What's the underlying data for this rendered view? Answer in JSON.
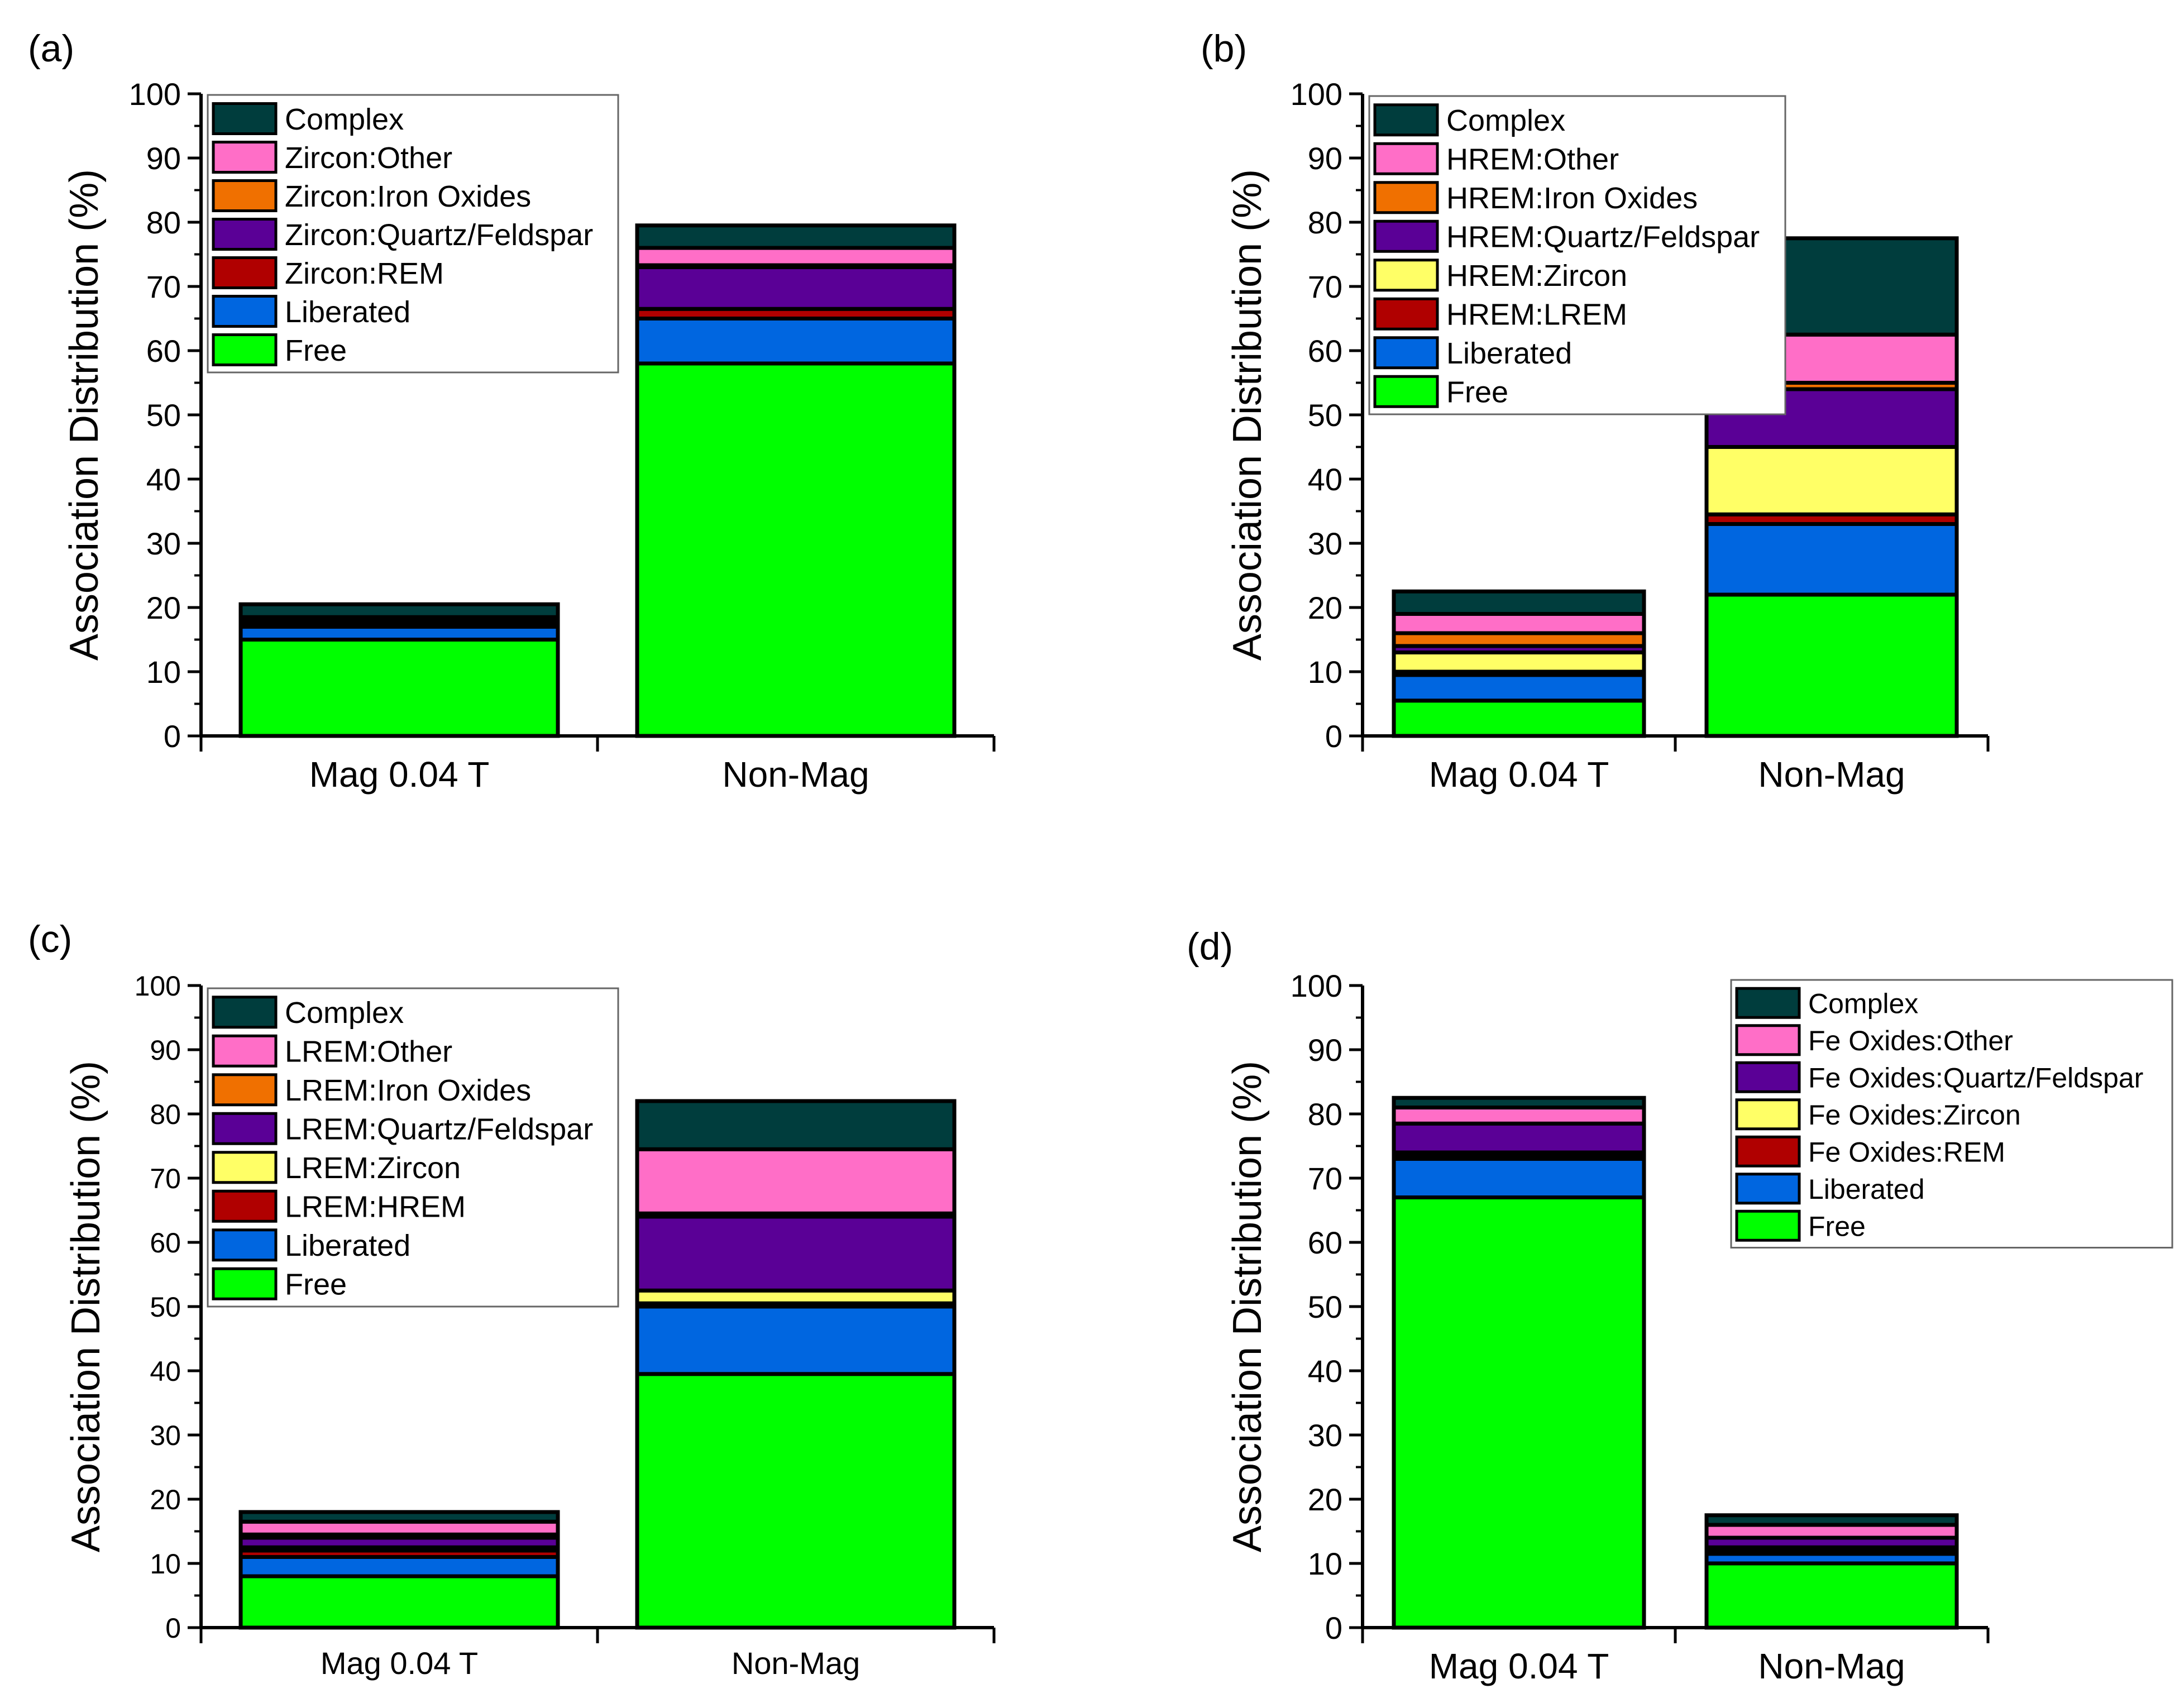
{
  "chart_data": [
    {
      "type": "bar",
      "stacked": true,
      "panel_label": "(a)",
      "ylabel": "Association Distribution (%)",
      "ylim": [
        0,
        100
      ],
      "yticks": [
        0,
        10,
        20,
        30,
        40,
        50,
        60,
        70,
        80,
        90,
        100
      ],
      "categories": [
        "Mag 0.04 T",
        "Non-Mag"
      ],
      "legend_position": "top-left",
      "series": [
        {
          "name": "Free",
          "color": "#00ff00",
          "values": [
            15.0,
            58.0
          ]
        },
        {
          "name": "Liberated",
          "color": "#0066e0",
          "values": [
            2.0,
            7.0
          ]
        },
        {
          "name": "Zircon:REM",
          "color": "#b00000",
          "values": [
            0.5,
            1.5
          ]
        },
        {
          "name": "Zircon:Quartz/Feldspar",
          "color": "#5a0096",
          "values": [
            0.5,
            6.5
          ]
        },
        {
          "name": "Zircon:Iron Oxides",
          "color": "#f07000",
          "values": [
            0.3,
            0.3
          ]
        },
        {
          "name": "Zircon:Other",
          "color": "#ff6ec7",
          "values": [
            0.2,
            2.7
          ]
        },
        {
          "name": "Complex",
          "color": "#003d3d",
          "values": [
            2.0,
            3.5
          ]
        }
      ]
    },
    {
      "type": "bar",
      "stacked": true,
      "panel_label": "(b)",
      "ylabel": "Association Distribution (%)",
      "ylim": [
        0,
        100
      ],
      "yticks": [
        0,
        10,
        20,
        30,
        40,
        50,
        60,
        70,
        80,
        90,
        100
      ],
      "categories": [
        "Mag 0.04 T",
        "Non-Mag"
      ],
      "legend_position": "top-left",
      "series": [
        {
          "name": "Free",
          "color": "#00ff00",
          "values": [
            5.5,
            22.0
          ]
        },
        {
          "name": "Liberated",
          "color": "#0066e0",
          "values": [
            4.0,
            11.0
          ]
        },
        {
          "name": "HREM:LREM",
          "color": "#b00000",
          "values": [
            0.5,
            1.5
          ]
        },
        {
          "name": "HREM:Zircon",
          "color": "#ffff66",
          "values": [
            3.0,
            10.5
          ]
        },
        {
          "name": "HREM:Quartz/Feldspar",
          "color": "#5a0096",
          "values": [
            1.0,
            9.0
          ]
        },
        {
          "name": "HREM:Iron Oxides",
          "color": "#f07000",
          "values": [
            2.0,
            1.0
          ]
        },
        {
          "name": "HREM:Other",
          "color": "#ff6ec7",
          "values": [
            3.0,
            7.5
          ]
        },
        {
          "name": "Complex",
          "color": "#003d3d",
          "values": [
            3.5,
            15.0
          ]
        }
      ]
    },
    {
      "type": "bar",
      "stacked": true,
      "panel_label": "(c)",
      "ylabel": "Association Distribution (%)",
      "ylim": [
        0,
        100
      ],
      "yticks": [
        0,
        10,
        20,
        30,
        40,
        50,
        60,
        70,
        80,
        90,
        100
      ],
      "categories": [
        "Mag 0.04 T",
        "Non-Mag"
      ],
      "legend_position": "top-left",
      "series": [
        {
          "name": "Free",
          "color": "#00ff00",
          "values": [
            8.0,
            39.5
          ]
        },
        {
          "name": "Liberated",
          "color": "#0066e0",
          "values": [
            3.0,
            10.5
          ]
        },
        {
          "name": "LREM:HREM",
          "color": "#b00000",
          "values": [
            1.0,
            0.5
          ]
        },
        {
          "name": "LREM:Zircon",
          "color": "#ffff66",
          "values": [
            0.5,
            2.0
          ]
        },
        {
          "name": "LREM:Quartz/Feldspar",
          "color": "#5a0096",
          "values": [
            1.5,
            11.5
          ]
        },
        {
          "name": "LREM:Iron Oxides",
          "color": "#f07000",
          "values": [
            0.5,
            0.5
          ]
        },
        {
          "name": "LREM:Other",
          "color": "#ff6ec7",
          "values": [
            2.0,
            10.0
          ]
        },
        {
          "name": "Complex",
          "color": "#003d3d",
          "values": [
            1.5,
            7.5
          ]
        }
      ]
    },
    {
      "type": "bar",
      "stacked": true,
      "panel_label": "(d)",
      "ylabel": "Association Distribution (%)",
      "ylim": [
        0,
        100
      ],
      "yticks": [
        0,
        10,
        20,
        30,
        40,
        50,
        60,
        70,
        80,
        90,
        100
      ],
      "categories": [
        "Mag 0.04 T",
        "Non-Mag"
      ],
      "legend_position": "top-right",
      "series": [
        {
          "name": "Free",
          "color": "#00ff00",
          "values": [
            67.0,
            10.0
          ]
        },
        {
          "name": "Liberated",
          "color": "#0066e0",
          "values": [
            6.0,
            1.5
          ]
        },
        {
          "name": "Fe Oxides:REM",
          "color": "#b00000",
          "values": [
            0.5,
            0.5
          ]
        },
        {
          "name": "Fe Oxides:Zircon",
          "color": "#ffff66",
          "values": [
            0.5,
            0.5
          ]
        },
        {
          "name": "Fe Oxides:Quartz/Feldspar",
          "color": "#5a0096",
          "values": [
            4.5,
            1.5
          ]
        },
        {
          "name": "Fe Oxides:Other",
          "color": "#ff6ec7",
          "values": [
            2.5,
            2.0
          ]
        },
        {
          "name": "Complex",
          "color": "#003d3d",
          "values": [
            1.5,
            1.5
          ]
        }
      ]
    }
  ]
}
